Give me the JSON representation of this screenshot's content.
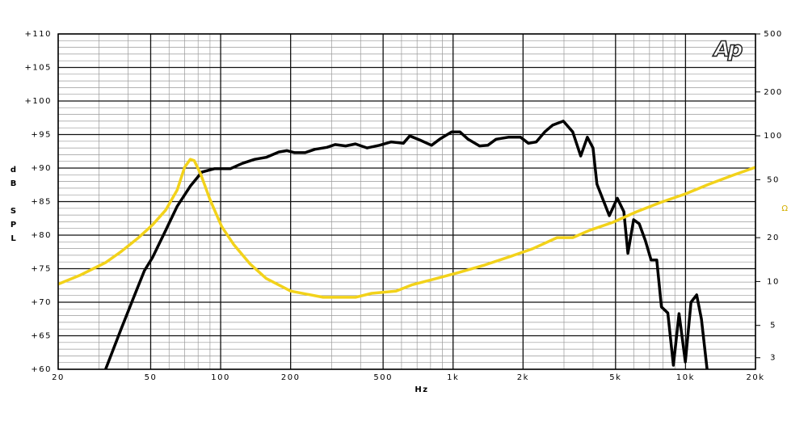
{
  "chart_data": {
    "type": "line",
    "y_label": "dB SPL",
    "x_label": "Hz",
    "y2_label": "Ω",
    "logo": "Ap",
    "xscale": "log",
    "y2scale": "log",
    "grid": true,
    "xlim": [
      20,
      20000
    ],
    "xticks": [
      20,
      50,
      100,
      200,
      500,
      {
        "value": 1000,
        "label": "1k"
      },
      {
        "value": 2000,
        "label": "2k"
      },
      {
        "value": 5000,
        "label": "5k"
      },
      {
        "value": 10000,
        "label": "10k"
      },
      {
        "value": 20000,
        "label": "20k"
      }
    ],
    "ylim": [
      60,
      110
    ],
    "yticks": [
      {
        "value": 60,
        "label": "+60"
      },
      {
        "value": 65,
        "label": "+65"
      },
      {
        "value": 70,
        "label": "+70"
      },
      {
        "value": 75,
        "label": "+75"
      },
      {
        "value": 80,
        "label": "+80"
      },
      {
        "value": 85,
        "label": "+85"
      },
      {
        "value": 90,
        "label": "+90"
      },
      {
        "value": 95,
        "label": "+95"
      },
      {
        "value": 100,
        "label": "+100"
      },
      {
        "value": 105,
        "label": "+105"
      },
      {
        "value": 110,
        "label": "+110"
      }
    ],
    "yminor_step": 1,
    "y2lim": [
      2.5,
      500
    ],
    "y2ticks": [
      3,
      5,
      10,
      20,
      50,
      100,
      200,
      500
    ],
    "series": [
      {
        "color": "#000000",
        "axis": "y",
        "x": [
          32,
          37,
          42,
          47,
          51,
          58,
          65,
          74,
          83,
          94,
          110,
          124,
          140,
          157,
          178,
          193,
          208,
          231,
          254,
          287,
          311,
          345,
          380,
          427,
          482,
          542,
          611,
          651,
          718,
          808,
          875,
          986,
          1070,
          1160,
          1300,
          1410,
          1530,
          1730,
          1950,
          2110,
          2280,
          2480,
          2680,
          2980,
          3270,
          3540,
          3780,
          4000,
          4160,
          4700,
          5090,
          5430,
          5650,
          5980,
          6320,
          6720,
          7110,
          7520,
          7880,
          8390,
          8870,
          9380,
          9980,
          10560,
          11170,
          11710,
          12380
        ],
        "values": [
          60,
          65.7,
          70.5,
          74.7,
          76.7,
          80.7,
          84.3,
          87.3,
          89.4,
          89.9,
          89.9,
          90.7,
          91.3,
          91.6,
          92.4,
          92.6,
          92.3,
          92.3,
          92.8,
          93.1,
          93.5,
          93.3,
          93.6,
          93,
          93.4,
          93.9,
          93.7,
          94.8,
          94.2,
          93.4,
          94.3,
          95.4,
          95.4,
          94.3,
          93.3,
          93.4,
          94.3,
          94.6,
          94.6,
          93.7,
          93.9,
          95.4,
          96.4,
          97,
          95.4,
          91.8,
          94.6,
          93,
          87.6,
          82.9,
          85.5,
          83.5,
          77.3,
          82.3,
          81.7,
          79.2,
          76.3,
          76.3,
          69.3,
          68.4,
          60.6,
          68.3,
          61.1,
          70,
          71.1,
          67.5,
          60
        ]
      },
      {
        "color": "#f2d21a",
        "axis": "y2",
        "x": [
          20,
          25,
          32,
          37,
          44,
          51,
          58,
          65,
          70,
          74,
          77,
          82,
          90,
          101,
          114,
          134,
          157,
          200,
          276,
          380,
          446,
          568,
          667,
          850,
          1070,
          1370,
          1730,
          2200,
          2800,
          3270,
          3850,
          4870,
          6150,
          7880,
          9980,
          12600,
          15900,
          20000
        ],
        "values": [
          9.6,
          11.1,
          13.5,
          15.9,
          19.8,
          24.5,
          30.9,
          42.5,
          60.8,
          69,
          67.5,
          54.8,
          36.5,
          23.9,
          17.9,
          13.2,
          10.5,
          8.6,
          7.8,
          7.8,
          8.3,
          8.6,
          9.5,
          10.5,
          11.6,
          13,
          14.7,
          16.8,
          20,
          20,
          22.4,
          25.5,
          30.1,
          35.1,
          39.9,
          46.5,
          53.5,
          60.8
        ]
      }
    ]
  }
}
